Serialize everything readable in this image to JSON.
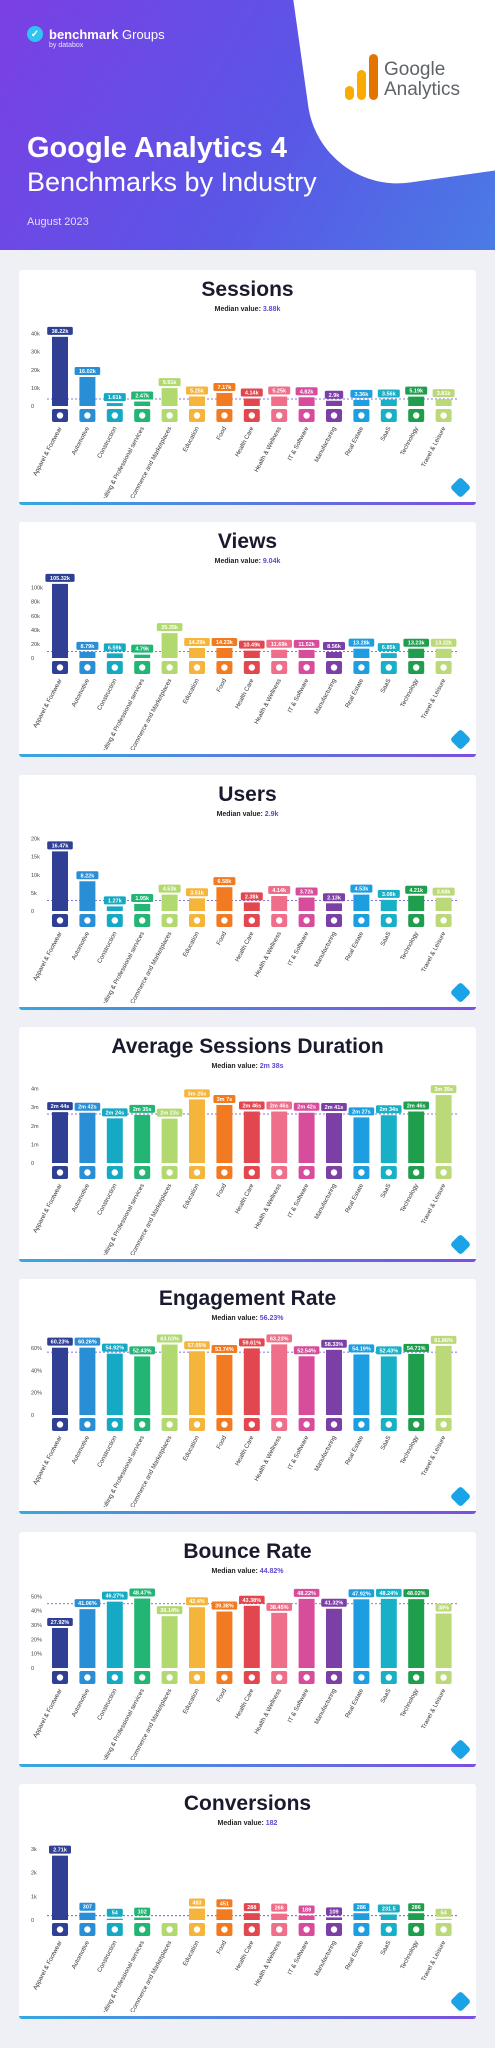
{
  "header": {
    "brand": "benchmark",
    "brand_suffix": "Groups",
    "brand_sub": "by databox",
    "title": "Google Analytics 4",
    "subtitle": "Benchmarks by Industry",
    "date": "August 2023",
    "logo_text_line1": "Google",
    "logo_text_line2": "Analytics"
  },
  "categories": [
    "Apparel & Footwear",
    "Automotive",
    "Construction",
    "Consulting & Professional services",
    "eCommerce and Marketplaces",
    "Education",
    "Food",
    "Health Care",
    "Health & Wellness",
    "IT & Software",
    "Manufacturing",
    "Real Estate",
    "SaaS",
    "Technology",
    "Travel & Leisure"
  ],
  "category_colors": [
    "#2e3f94",
    "#2a8ed6",
    "#15a9c4",
    "#23b574",
    "#b2d870",
    "#f5b53a",
    "#f27b22",
    "#e2474f",
    "#ef6f8a",
    "#d84c9c",
    "#7b3fa6",
    "#1d9ee0",
    "#18b0c7",
    "#1f9e4e",
    "#bcd97a"
  ],
  "category_icons": [
    "shirt-icon",
    "car-icon",
    "hardhat-icon",
    "handshake-icon",
    "cart-icon",
    "graduation-icon",
    "apple-icon",
    "heart-icon",
    "wellness-icon",
    "monitor-icon",
    "factory-icon",
    "house-icon",
    "cloud-icon",
    "gear-icon",
    "suitcase-icon"
  ],
  "median_label": "Median value:",
  "chart_data": [
    {
      "type": "bar",
      "title": "Sessions",
      "median_text": "3.88k",
      "median": 3880,
      "yticks": [
        "40k",
        "30k",
        "20k",
        "10k",
        "0"
      ],
      "ytick_values": [
        40000,
        30000,
        20000,
        10000,
        0
      ],
      "ylim": [
        0,
        42000
      ],
      "values": [
        38220,
        16020,
        1610,
        2470,
        9910,
        5250,
        7170,
        4140,
        5250,
        4820,
        2900,
        3360,
        3560,
        5190,
        3810
      ],
      "labels": [
        "38.22k",
        "16.02k",
        "1.61k",
        "2.47k",
        "9.91k",
        "5.25k",
        "7.17k",
        "4.14k",
        "5.25k",
        "4.82k",
        "2.9k",
        "3.36k",
        "3.56k",
        "5.19k",
        "3.81k"
      ]
    },
    {
      "type": "bar",
      "title": "Views",
      "median_text": "9.04k",
      "median": 9040,
      "yticks": [
        "100k",
        "80k",
        "60k",
        "40k",
        "20k",
        "0"
      ],
      "ytick_values": [
        100000,
        80000,
        60000,
        40000,
        20000,
        0
      ],
      "ylim": [
        0,
        108000
      ],
      "values": [
        105320,
        8790,
        6590,
        4790,
        35350,
        14290,
        14230,
        10490,
        11690,
        11520,
        8560,
        13280,
        6850,
        13230,
        13220
      ],
      "labels": [
        "105.32k",
        "8.79k",
        "6.59k",
        "4.79k",
        "35.35k",
        "14.29k",
        "14.23k",
        "10.49k",
        "11.69k",
        "11.52k",
        "8.56k",
        "13.28k",
        "6.85k",
        "13.23k",
        "13.22k"
      ]
    },
    {
      "type": "bar",
      "title": "Users",
      "median_text": "2.9k",
      "median": 2900,
      "yticks": [
        "20k",
        "15k",
        "10k",
        "5k",
        "0"
      ],
      "ytick_values": [
        20000,
        15000,
        10000,
        5000,
        0
      ],
      "ylim": [
        0,
        21000
      ],
      "values": [
        16470,
        8220,
        1270,
        1950,
        4530,
        3510,
        6580,
        2380,
        4140,
        3720,
        2130,
        4530,
        3080,
        4210,
        3680
      ],
      "labels": [
        "16.47k",
        "8.22k",
        "1.27k",
        "1.95k",
        "4.53k",
        "3.51k",
        "6.58k",
        "2.38k",
        "4.14k",
        "3.72k",
        "2.13k",
        "4.53k",
        "3.08k",
        "4.21k",
        "3.68k"
      ]
    },
    {
      "type": "bar",
      "title": "Average Sessions Duration",
      "median_text": "2m 38s",
      "median": 158,
      "yticks": [
        "4m",
        "3m",
        "2m",
        "1m",
        "0"
      ],
      "ytick_values": [
        240,
        180,
        120,
        60,
        0
      ],
      "ylim": [
        0,
        245
      ],
      "values": [
        164,
        162,
        144,
        155,
        143,
        205,
        187,
        166,
        166,
        162,
        161,
        147,
        154,
        166,
        219
      ],
      "labels": [
        "2m 44s",
        "2m 42s",
        "2m 24s",
        "2m 35s",
        "2m 23s",
        "3m 25s",
        "3m 7s",
        "2m 46s",
        "2m 46s",
        "2m 42s",
        "2m 41s",
        "2m 27s",
        "2m 34s",
        "2m 46s",
        "3m 39s"
      ]
    },
    {
      "type": "bar",
      "title": "Engagement Rate",
      "median_text": "56.23%",
      "median": 56.23,
      "yticks": [
        "60%",
        "40%",
        "20%",
        "0"
      ],
      "ytick_values": [
        60,
        40,
        20,
        0
      ],
      "ylim": [
        0,
        68
      ],
      "values": [
        60.23,
        60.26,
        54.92,
        52.43,
        63.03,
        57.05,
        53.74,
        59.61,
        63.23,
        52.54,
        58.33,
        54.19,
        52.43,
        54.71,
        61.86
      ],
      "labels": [
        "60.23%",
        "60.26%",
        "54.92%",
        "52.43%",
        "63.03%",
        "57.05%",
        "53.74%",
        "59.61%",
        "63.23%",
        "52.54%",
        "58.33%",
        "54.19%",
        "52.43%",
        "54.71%",
        "61.86%"
      ]
    },
    {
      "type": "bar",
      "title": "Bounce Rate",
      "median_text": "44.82%",
      "median": 44.82,
      "yticks": [
        "50%",
        "40%",
        "30%",
        "20%",
        "10%",
        "0"
      ],
      "ytick_values": [
        50,
        40,
        30,
        20,
        10,
        0
      ],
      "ylim": [
        0,
        53
      ],
      "values": [
        27.92,
        41.06,
        46.27,
        48.47,
        36.14,
        42.4,
        39.38,
        43.38,
        38.45,
        48.22,
        41.32,
        47.92,
        48.24,
        48.02,
        38
      ],
      "labels": [
        "27.92%",
        "41.06%",
        "46.27%",
        "48.47%",
        "36.14%",
        "42.4%",
        "39.38%",
        "43.38%",
        "38.45%",
        "48.22%",
        "41.32%",
        "47.92%",
        "48.24%",
        "48.02%",
        "38%"
      ]
    },
    {
      "type": "bar",
      "title": "Conversions",
      "median_text": "182",
      "median": 182,
      "yticks": [
        "3k",
        "2k",
        "1k",
        "0"
      ],
      "ytick_values": [
        3000,
        2000,
        1000,
        0
      ],
      "ylim": [
        0,
        3200
      ],
      "values": [
        2710,
        307,
        54,
        102,
        0,
        483,
        451,
        288,
        266,
        189,
        109,
        286,
        231.5,
        286,
        54
      ],
      "labels": [
        "2.71k",
        "307",
        "54",
        "102",
        "",
        "483",
        "451",
        "288",
        "266",
        "189",
        "109",
        "286",
        "231.5",
        "286",
        "54"
      ]
    }
  ]
}
